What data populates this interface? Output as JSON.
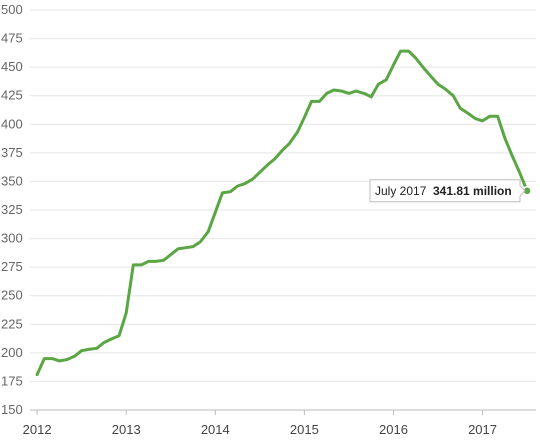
{
  "chart_data": {
    "type": "line",
    "title": "",
    "xlabel": "",
    "ylabel": "",
    "ylim": [
      150,
      500
    ],
    "yticks": [
      150,
      175,
      200,
      225,
      250,
      275,
      300,
      325,
      350,
      375,
      400,
      425,
      450,
      475,
      500
    ],
    "ytick_labels": [
      "150",
      "175",
      "200",
      "225",
      "250",
      "275",
      "300",
      "325",
      "350",
      "375",
      "400",
      "425",
      "450",
      "475",
      "500"
    ],
    "xlim": [
      2011.92,
      2017.6
    ],
    "xticks": [
      2012,
      2013,
      2014,
      2015,
      2016,
      2017
    ],
    "xtick_labels": [
      "2012",
      "2013",
      "2014",
      "2015",
      "2016",
      "2017"
    ],
    "grid": true,
    "line_color": "#5aa544",
    "series": [
      {
        "x": [
          2012.0,
          2012.08,
          2012.17,
          2012.25,
          2012.33,
          2012.42,
          2012.5,
          2012.58,
          2012.67,
          2012.75,
          2012.83,
          2012.92,
          2013.0,
          2013.08,
          2013.17,
          2013.25,
          2013.33,
          2013.42,
          2013.5,
          2013.58,
          2013.67,
          2013.75,
          2013.83,
          2013.92,
          2014.0,
          2014.08,
          2014.17,
          2014.25,
          2014.33,
          2014.42,
          2014.5,
          2014.58,
          2014.67,
          2014.75,
          2014.83,
          2014.92,
          2015.0,
          2015.08,
          2015.17,
          2015.25,
          2015.33,
          2015.42,
          2015.5,
          2015.58,
          2015.67,
          2015.75,
          2015.83,
          2015.92,
          2016.0,
          2016.08,
          2016.17,
          2016.25,
          2016.33,
          2016.42,
          2016.5,
          2016.58,
          2016.67,
          2016.75,
          2016.83,
          2016.92,
          2017.0,
          2017.08,
          2017.17,
          2017.25,
          2017.33,
          2017.42,
          2017.5
        ],
        "y": [
          181,
          195,
          195,
          193,
          194,
          197,
          202,
          203,
          204,
          209,
          212,
          215,
          235,
          277,
          277,
          280,
          280,
          281,
          286,
          291,
          292,
          293,
          297,
          306,
          323,
          340,
          341,
          346,
          348,
          352,
          358,
          364,
          370,
          377,
          383,
          393,
          406,
          420,
          420,
          427,
          430,
          429,
          427,
          429,
          427,
          424,
          435,
          439,
          452,
          464,
          464,
          458,
          450,
          442,
          435,
          431,
          425,
          414,
          410,
          405,
          403,
          407,
          407,
          388,
          373,
          357,
          341.81
        ]
      }
    ],
    "tooltip": {
      "label": "July 2017",
      "value": "341.81 million"
    }
  }
}
